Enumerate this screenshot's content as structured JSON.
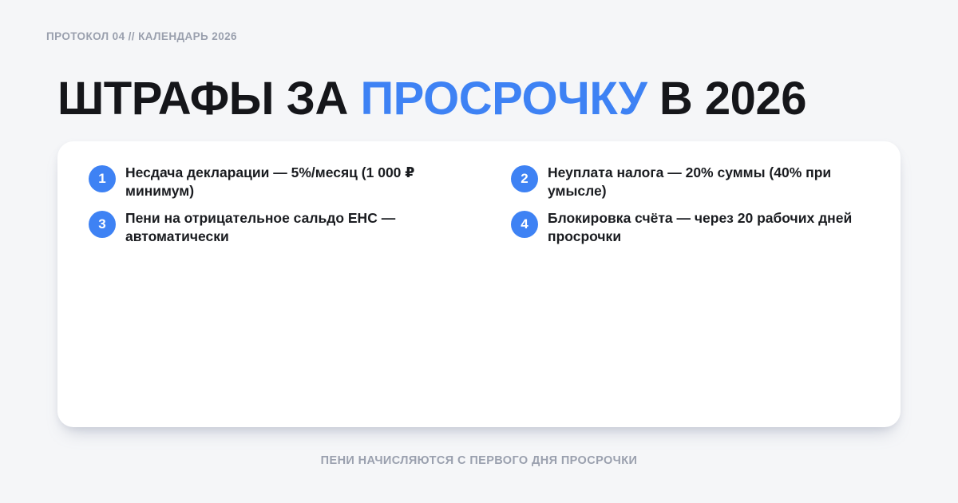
{
  "colors": {
    "accent": "#3e82f4",
    "background": "#f5f6f8",
    "card_background": "#ffffff",
    "title_text": "#15161a",
    "body_text": "#1a1c20",
    "muted_text": "#9aa0ae",
    "badge_text": "#ffffff"
  },
  "header": {
    "eyebrow": "ПРОТОКОЛ 04 // КАЛЕНДАРЬ 2026",
    "title_prefix": "ШТРАФЫ ЗА ",
    "title_highlight": "ПРОСРОЧКУ",
    "title_suffix": " В 2026"
  },
  "card": {
    "items": [
      {
        "number": "1",
        "text": "Несдача декларации — 5%/месяц (1 000 ₽ минимум)",
        "lines": [
          "Несдача декларации — 5%/месяц (1 000 ₽",
          "минимум)"
        ]
      },
      {
        "number": "2",
        "text": "Неуплата налога — 20% суммы (40% при умысле)",
        "lines": [
          "Неуплата налога — 20% суммы (40% при",
          "умысле)"
        ]
      },
      {
        "number": "3",
        "text": "Пени на отрицательное сальдо ЕНС — автоматически",
        "lines": [
          "Пени на отрицательное сальдо ЕНС —",
          "автоматически"
        ]
      },
      {
        "number": "4",
        "text": "Блокировка счёта — через 20 рабочих дней просрочки",
        "lines": [
          "Блокировка счёта — через 20 рабочих дней",
          "просрочки"
        ]
      }
    ]
  },
  "footer": {
    "note": "ПЕНИ НАЧИСЛЯЮТСЯ С ПЕРВОГО ДНЯ ПРОСРОЧКИ"
  }
}
